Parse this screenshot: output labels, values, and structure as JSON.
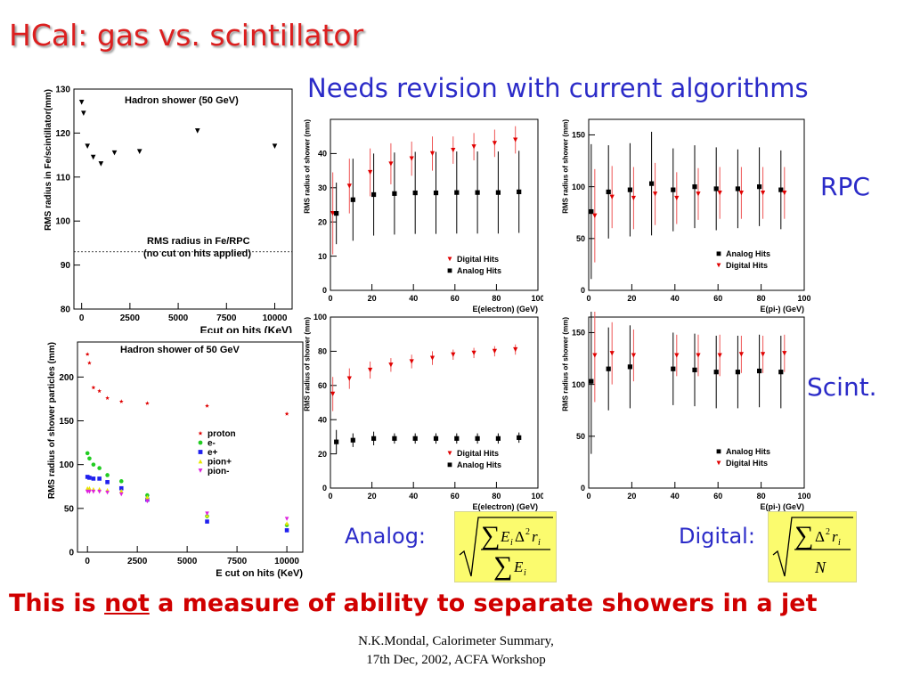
{
  "page": {
    "title": "HCal: gas vs. scintillator",
    "subtitle": "Needs revision with current algorithms",
    "rpc_label": "RPC",
    "scint_label": "Scint.",
    "analog_label": "Analog:",
    "digital_label": "Digital:",
    "bottom_pre": "This is ",
    "bottom_not": "not",
    "bottom_post": " a measure of ability to separate showers in a jet",
    "footer_line1": "N.K.Mondal, Calorimeter Summary,",
    "footer_line2": "17th Dec, 2002, ACFA Workshop",
    "colors": {
      "title": "#dc1f1f",
      "blue_text": "#2b2bc8",
      "formula_bg": "#fbfb6e",
      "bottom_text": "#d00000"
    }
  },
  "chart_data": [
    {
      "id": "c1",
      "type": "scatter",
      "title": "Hadron shower (50 GeV)",
      "xlabel": "Ecut on hits (KeV)",
      "ylabel": "RMS radius in Fe/scintillator(mm)",
      "xlim": [
        -400,
        10900
      ],
      "ylim": [
        80,
        130
      ],
      "xticks": [
        0,
        2500,
        5000,
        7500,
        10000
      ],
      "yticks": [
        80,
        90,
        100,
        110,
        120,
        130
      ],
      "series": [
        {
          "marker": "tri-down",
          "color": "#000000",
          "x": [
            0,
            100,
            300,
            600,
            1000,
            1700,
            3000,
            6000,
            10000
          ],
          "y": [
            127,
            124.5,
            117,
            114.5,
            113,
            115.5,
            115.8,
            120.5,
            117
          ]
        }
      ],
      "reference_line": {
        "y": 93,
        "style": "dotted"
      },
      "annotation": [
        "RMS radius in Fe/RPC",
        "(no cut on hits applied)"
      ]
    },
    {
      "id": "c2",
      "type": "scatter",
      "title": "Hadron shower of 50 GeV",
      "xlabel": "E cut on hits (KeV)",
      "ylabel": "RMS radius of shower particles (mm)",
      "xlim": [
        -500,
        10800
      ],
      "ylim": [
        0,
        240
      ],
      "xticks": [
        0,
        2500,
        5000,
        7500,
        10000
      ],
      "yticks": [
        0,
        50,
        100,
        150,
        200
      ],
      "series": [
        {
          "name": "proton",
          "marker": "star",
          "color": "#e00000",
          "x": [
            0,
            100,
            300,
            600,
            1000,
            1700,
            3000,
            6000,
            10000
          ],
          "y": [
            226,
            216,
            188,
            184,
            176,
            172,
            170,
            167,
            158
          ]
        },
        {
          "name": "e-",
          "marker": "circle",
          "color": "#22cc22",
          "x": [
            0,
            100,
            300,
            600,
            1000,
            1700,
            3000,
            6000,
            10000
          ],
          "y": [
            113,
            107,
            100,
            96,
            88,
            81,
            65,
            41,
            31
          ]
        },
        {
          "name": "e+",
          "marker": "square",
          "color": "#2020ee",
          "x": [
            0,
            100,
            300,
            600,
            1000,
            1700,
            3000,
            6000,
            10000
          ],
          "y": [
            86,
            85,
            84,
            84,
            80,
            73,
            60,
            35,
            25
          ]
        },
        {
          "name": "pion+",
          "marker": "tri-up",
          "color": "#e8e800",
          "x": [
            0,
            100,
            300,
            600,
            1000,
            1700,
            3000,
            6000,
            10000
          ],
          "y": [
            73,
            73,
            72,
            72,
            71,
            70,
            63,
            42,
            33
          ]
        },
        {
          "name": "pion-",
          "marker": "tri-down",
          "color": "#dd22dd",
          "x": [
            0,
            100,
            300,
            600,
            1000,
            1700,
            3000,
            6000,
            10000
          ],
          "y": [
            69,
            69,
            69,
            69,
            68,
            66,
            58,
            44,
            38
          ]
        }
      ]
    },
    {
      "id": "c3",
      "type": "scatter",
      "xlabel": "E(electron) (GeV)",
      "ylabel": "RMS radius of shower (mm)",
      "xlim": [
        0,
        100
      ],
      "ylim": [
        0,
        50
      ],
      "xticks": [
        0,
        20,
        40,
        60,
        80,
        100
      ],
      "yticks": [
        0,
        10,
        20,
        30,
        40
      ],
      "series": [
        {
          "name": "Digital Hits",
          "marker": "tri-down",
          "color": "#e00000",
          "err_color": "#ee5555",
          "x": [
            2,
            10,
            20,
            30,
            40,
            50,
            60,
            70,
            80,
            90
          ],
          "y": [
            22.5,
            30.5,
            34.5,
            37,
            38.5,
            40,
            41,
            42,
            43,
            44
          ],
          "err": [
            12,
            8,
            7,
            6,
            5,
            5,
            4,
            4,
            4,
            4
          ]
        },
        {
          "name": "Analog Hits",
          "marker": "square",
          "color": "#000000",
          "err_color": "#000000",
          "x": [
            2,
            10,
            20,
            30,
            40,
            50,
            60,
            70,
            80,
            90
          ],
          "y": [
            22.5,
            26.5,
            28,
            28.3,
            28.5,
            28.5,
            28.6,
            28.6,
            28.6,
            28.8
          ],
          "err": [
            9,
            12,
            12,
            12,
            12,
            12,
            12,
            12,
            12,
            12
          ]
        }
      ],
      "legend_order": [
        "Digital Hits",
        "Analog Hits"
      ]
    },
    {
      "id": "c4",
      "type": "scatter",
      "xlabel": "E(pi-) (GeV)",
      "ylabel": "RMS radius of shower (mm)",
      "xlim": [
        0,
        100
      ],
      "ylim": [
        0,
        165
      ],
      "xticks": [
        0,
        20,
        40,
        60,
        80,
        100
      ],
      "yticks": [
        0,
        50,
        100,
        150
      ],
      "series": [
        {
          "name": "Analog Hits",
          "marker": "square",
          "color": "#000000",
          "err_color": "#000000",
          "x": [
            2,
            10,
            20,
            30,
            40,
            50,
            60,
            70,
            80,
            90
          ],
          "y": [
            76,
            95,
            97,
            103,
            97,
            100,
            98,
            98,
            100,
            97
          ],
          "err": [
            65,
            45,
            45,
            50,
            40,
            40,
            40,
            38,
            38,
            38
          ]
        },
        {
          "name": "Digital Hits",
          "marker": "tri-down",
          "color": "#e00000",
          "err_color": "#ee5555",
          "x": [
            2,
            10,
            20,
            30,
            40,
            50,
            60,
            70,
            80,
            90
          ],
          "y": [
            72,
            90,
            89,
            93,
            89,
            93,
            94,
            94,
            94,
            94
          ],
          "err": [
            45,
            30,
            30,
            30,
            25,
            25,
            25,
            25,
            25,
            25
          ]
        }
      ],
      "legend_order": [
        "Analog Hits",
        "Digital Hits"
      ]
    },
    {
      "id": "c5",
      "type": "scatter",
      "xlabel": "E(electron) (GeV)",
      "ylabel": "RMS radius of shower (mm)",
      "xlim": [
        0,
        100
      ],
      "ylim": [
        0,
        100
      ],
      "xticks": [
        0,
        20,
        40,
        60,
        80,
        100
      ],
      "yticks": [
        0,
        20,
        40,
        60,
        80,
        100
      ],
      "series": [
        {
          "name": "Digital Hits",
          "marker": "tri-down",
          "color": "#e00000",
          "err_color": "#ee5555",
          "x": [
            2,
            10,
            20,
            30,
            40,
            50,
            60,
            70,
            80,
            90
          ],
          "y": [
            55,
            64,
            69,
            72,
            74,
            76,
            78,
            79,
            80,
            81
          ],
          "err": [
            10,
            6,
            5,
            4,
            4,
            4,
            3,
            3,
            3,
            3
          ]
        },
        {
          "name": "Analog Hits",
          "marker": "square",
          "color": "#000000",
          "err_color": "#000000",
          "x": [
            2,
            10,
            20,
            30,
            40,
            50,
            60,
            70,
            80,
            90
          ],
          "y": [
            27,
            28,
            29,
            29,
            29,
            29,
            29,
            29,
            29,
            29.5
          ],
          "err": [
            7,
            4,
            4,
            3,
            3,
            3,
            3,
            3,
            3,
            3
          ]
        }
      ],
      "legend_order": [
        "Digital Hits",
        "Analog Hits"
      ]
    },
    {
      "id": "c6",
      "type": "scatter",
      "xlabel": "E(pi-) (GeV)",
      "ylabel": "RMS radius of shower (mm)",
      "xlim": [
        0,
        100
      ],
      "ylim": [
        0,
        165
      ],
      "xticks": [
        0,
        20,
        40,
        60,
        80,
        100
      ],
      "yticks": [
        0,
        50,
        100,
        150
      ],
      "series": [
        {
          "name": "Analog Hits",
          "marker": "square",
          "color": "#000000",
          "err_color": "#000000",
          "x": [
            2,
            10,
            20,
            40,
            50,
            60,
            70,
            80,
            90
          ],
          "y": [
            103,
            115,
            117,
            115,
            114,
            112,
            112,
            113,
            112
          ],
          "err": [
            70,
            40,
            40,
            35,
            35,
            35,
            35,
            35,
            35
          ]
        },
        {
          "name": "Digital Hits",
          "marker": "tri-down",
          "color": "#e00000",
          "err_color": "#ee5555",
          "x": [
            2,
            10,
            20,
            40,
            50,
            60,
            70,
            80,
            90
          ],
          "y": [
            128,
            130,
            128,
            128,
            128,
            128,
            129,
            129,
            130
          ],
          "err": [
            45,
            30,
            25,
            20,
            20,
            20,
            18,
            18,
            18
          ]
        }
      ],
      "legend_order": [
        "Analog Hits",
        "Digital Hits"
      ]
    }
  ]
}
